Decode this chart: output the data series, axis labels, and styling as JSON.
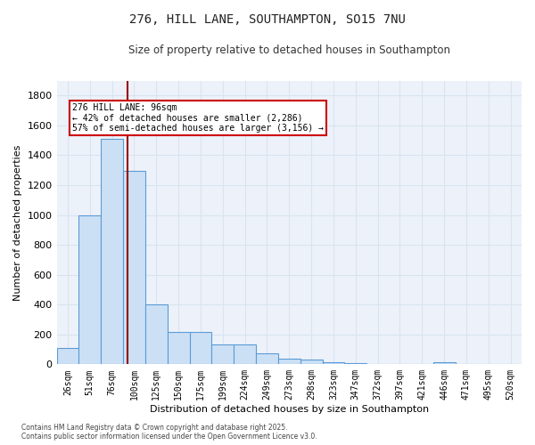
{
  "title_line1": "276, HILL LANE, SOUTHAMPTON, SO15 7NU",
  "title_line2": "Size of property relative to detached houses in Southampton",
  "xlabel": "Distribution of detached houses by size in Southampton",
  "ylabel": "Number of detached properties",
  "bar_labels": [
    "26sqm",
    "51sqm",
    "76sqm",
    "100sqm",
    "125sqm",
    "150sqm",
    "175sqm",
    "199sqm",
    "224sqm",
    "249sqm",
    "273sqm",
    "298sqm",
    "323sqm",
    "347sqm",
    "372sqm",
    "397sqm",
    "421sqm",
    "446sqm",
    "471sqm",
    "495sqm",
    "520sqm"
  ],
  "bar_values": [
    110,
    998,
    1510,
    1295,
    400,
    215,
    215,
    135,
    135,
    72,
    40,
    30,
    15,
    5,
    0,
    0,
    0,
    15,
    0,
    0,
    0
  ],
  "bar_color": "#cce0f5",
  "bar_edge_color": "#5b9bd5",
  "grid_color": "#d8e4f0",
  "background_color": "#edf2fa",
  "vline_color": "#990000",
  "annotation_text": "276 HILL LANE: 96sqm\n← 42% of detached houses are smaller (2,286)\n57% of semi-detached houses are larger (3,156) →",
  "annotation_box_color": "#ffffff",
  "annotation_box_edge": "#cc0000",
  "ylim": [
    0,
    1900
  ],
  "yticks": [
    0,
    200,
    400,
    600,
    800,
    1000,
    1200,
    1400,
    1600,
    1800
  ],
  "footnote1": "Contains HM Land Registry data © Crown copyright and database right 2025.",
  "footnote2": "Contains public sector information licensed under the Open Government Licence v3.0.",
  "fig_bg": "#ffffff"
}
